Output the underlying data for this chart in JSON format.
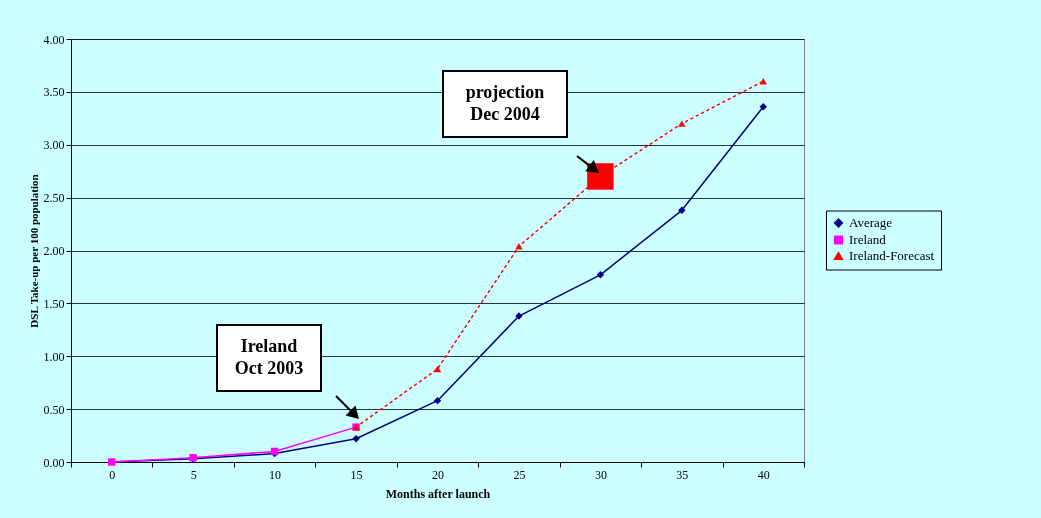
{
  "chart_data": {
    "type": "line",
    "xlabel": "Months after launch",
    "ylabel": "DSL Take-up per 100 population",
    "categories": [
      "0",
      "5",
      "10",
      "15",
      "20",
      "25",
      "30",
      "35",
      "40"
    ],
    "series": [
      {
        "name": "Average",
        "color": "#000080",
        "marker": "diamond",
        "line_style": "solid",
        "values": [
          0,
          0.03,
          0.08,
          0.22,
          0.58,
          1.38,
          1.77,
          2.38,
          3.36
        ]
      },
      {
        "name": "Ireland",
        "color": "#ff00ff",
        "marker": "square",
        "line_style": "solid",
        "values": [
          0,
          0.04,
          0.1,
          0.33,
          null,
          null,
          null,
          null,
          null
        ]
      },
      {
        "name": "Ireland-Forecast",
        "color": "#ff0000",
        "marker": "triangle",
        "line_style": "dotted",
        "values": [
          null,
          null,
          null,
          0.33,
          0.88,
          2.04,
          2.7,
          3.2,
          3.6
        ]
      },
      {
        "type": "scatter",
        "color": "#ff0000",
        "marker": "square",
        "values": [
          null,
          null,
          null,
          null,
          null,
          null,
          2.7,
          null,
          null
        ]
      }
    ],
    "ylim": [
      0,
      4
    ],
    "yticks": [
      {
        "value": 0,
        "label": "0.00"
      },
      {
        "value": 0.5,
        "label": "0.50"
      },
      {
        "value": 1,
        "label": "1.00"
      },
      {
        "value": 1.5,
        "label": "1.50"
      },
      {
        "value": 2,
        "label": "2.00"
      },
      {
        "value": 2.5,
        "label": "2.50"
      },
      {
        "value": 3,
        "label": "3.00"
      },
      {
        "value": 3.5,
        "label": "3.50"
      },
      {
        "value": 4,
        "label": "4.00"
      }
    ],
    "grid": "y",
    "legend": "right",
    "annotations": [
      "Ireland\nOct 2003",
      "projection\nDec 2004"
    ]
  }
}
